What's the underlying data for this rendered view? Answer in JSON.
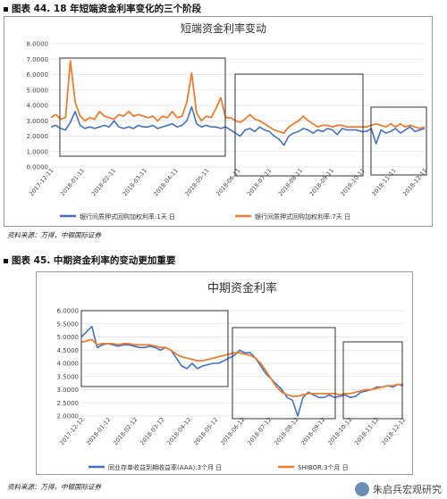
{
  "figure1": {
    "heading": "图表 44. 18 年短端资金利率变化的三个阶段",
    "source": "资料来源：万得，中银国际证券"
  },
  "figure2": {
    "heading": "图表 45. 中期资金利率的变动更加重要",
    "source": "资料来源：万得，中银国际证券"
  },
  "watermark": "朱启兵宏观研究",
  "colors": {
    "blue": "#4472C4",
    "orange": "#ED7D31",
    "box": "#333333"
  },
  "chart_data": [
    {
      "type": "line",
      "title": "短端资金利率变动",
      "ylim": [
        0,
        8
      ],
      "yticks": [
        "0.0000",
        "1.0000",
        "2.0000",
        "3.0000",
        "4.0000",
        "5.0000",
        "6.0000",
        "7.0000",
        "8.0000"
      ],
      "xticks": [
        "2017-12-11",
        "2018-01-11",
        "2018-02-11",
        "2018-03-11",
        "2018-04-11",
        "2018-05-11",
        "2018-06-11",
        "2018-07-11",
        "2018-08-11",
        "2018-09-11",
        "2018-10-11",
        "2018-11-11",
        "2018-12-11"
      ],
      "series": [
        {
          "name": "银行间质押式回购加权利率:1天 日",
          "values": [
            2.6,
            2.7,
            2.5,
            2.4,
            2.9,
            3.6,
            2.7,
            2.5,
            2.6,
            2.5,
            2.6,
            2.7,
            2.6,
            3.0,
            2.6,
            2.5,
            2.6,
            2.5,
            2.7,
            2.6,
            2.6,
            2.7,
            2.5,
            2.6,
            2.7,
            2.8,
            2.6,
            2.7,
            3.0,
            3.9,
            2.8,
            2.6,
            2.7,
            2.6,
            2.6,
            2.5,
            2.6,
            2.4,
            2.2,
            2.0,
            2.4,
            2.5,
            2.3,
            2.6,
            2.4,
            2.3,
            2.0,
            1.8,
            1.4,
            2.0,
            2.2,
            2.3,
            2.5,
            2.4,
            2.2,
            2.4,
            2.3,
            2.5,
            2.4,
            2.1,
            2.5,
            2.4,
            2.4,
            2.4,
            2.3,
            2.3,
            2.5,
            1.5,
            2.4,
            2.2,
            2.3,
            2.5,
            2.2,
            2.4,
            2.6,
            2.3,
            2.4,
            2.5
          ]
        },
        {
          "name": "银行间质押式回购加权利率:7天 日",
          "values": [
            3.2,
            3.4,
            3.1,
            3.2,
            6.9,
            4.2,
            3.3,
            3.0,
            3.2,
            3.1,
            3.6,
            3.3,
            3.2,
            3.1,
            3.4,
            3.3,
            3.6,
            3.3,
            3.4,
            3.3,
            3.2,
            3.3,
            3.0,
            3.3,
            3.2,
            3.6,
            3.2,
            3.3,
            4.2,
            6.1,
            3.5,
            3.0,
            3.3,
            3.2,
            3.8,
            4.5,
            3.2,
            3.2,
            3.0,
            2.9,
            3.1,
            3.4,
            3.1,
            3.0,
            2.8,
            2.6,
            2.4,
            2.3,
            2.2,
            2.6,
            2.8,
            3.0,
            3.3,
            3.0,
            2.8,
            2.6,
            2.7,
            2.7,
            2.6,
            2.7,
            2.7,
            2.6,
            2.6,
            2.6,
            2.6,
            2.6,
            2.7,
            2.8,
            2.7,
            2.6,
            2.8,
            2.6,
            2.8,
            2.6,
            2.7,
            2.6,
            2.5,
            2.6
          ]
        }
      ],
      "legend_position": "bottom"
    },
    {
      "type": "line",
      "title": "中期资金利率",
      "ylim": [
        2,
        6
      ],
      "yticks": [
        "2.0000",
        "2.5000",
        "3.0000",
        "3.5000",
        "4.0000",
        "4.5000",
        "5.0000",
        "5.5000",
        "6.0000"
      ],
      "xticks": [
        "2017-12-12",
        "2018-01-12",
        "2018-02-12",
        "2018-03-12",
        "2018-04-12",
        "2018-05-12",
        "2018-06-12",
        "2018-07-12",
        "2018-08-12",
        "2018-09-12",
        "2018-10-12",
        "2018-11-12",
        "2018-12-12"
      ],
      "series": [
        {
          "name": "同业存单收益到期收益率(AAA):3个月 日",
          "values": [
            5.0,
            5.2,
            5.4,
            4.6,
            4.7,
            4.75,
            4.7,
            4.65,
            4.7,
            4.7,
            4.65,
            4.6,
            4.6,
            4.65,
            4.6,
            4.5,
            4.6,
            4.5,
            4.2,
            3.9,
            3.8,
            4.0,
            3.8,
            3.9,
            3.95,
            4.0,
            4.0,
            4.1,
            4.2,
            4.3,
            4.5,
            4.4,
            4.4,
            4.2,
            3.9,
            3.6,
            3.4,
            3.2,
            3.0,
            2.7,
            2.6,
            2.0,
            2.7,
            2.9,
            2.8,
            2.7,
            2.7,
            2.8,
            2.7,
            2.75,
            2.8,
            2.7,
            2.75,
            2.9,
            2.95,
            3.0,
            3.1,
            3.1,
            3.15,
            3.1,
            3.2,
            3.15
          ]
        },
        {
          "name": "SHIBOR:3个月 日",
          "values": [
            4.8,
            4.85,
            4.9,
            4.7,
            4.75,
            4.75,
            4.75,
            4.7,
            4.75,
            4.75,
            4.7,
            4.7,
            4.7,
            4.7,
            4.65,
            4.6,
            4.6,
            4.5,
            4.35,
            4.25,
            4.2,
            4.15,
            4.1,
            4.1,
            4.15,
            4.2,
            4.25,
            4.3,
            4.35,
            4.4,
            4.4,
            4.35,
            4.3,
            4.2,
            4.0,
            3.7,
            3.4,
            3.1,
            2.9,
            2.8,
            2.75,
            2.75,
            2.8,
            2.85,
            2.85,
            2.85,
            2.85,
            2.85,
            2.85,
            2.8,
            2.85,
            2.85,
            2.9,
            2.95,
            3.0,
            3.0,
            3.05,
            3.1,
            3.15,
            3.15,
            3.2,
            3.2
          ]
        }
      ],
      "legend_position": "bottom"
    }
  ]
}
